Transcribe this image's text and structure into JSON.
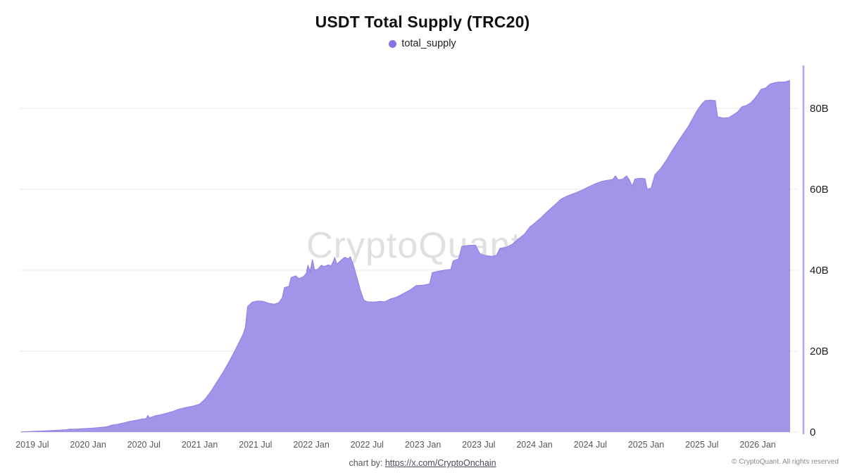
{
  "header": {
    "title": "USDT Total Supply (TRC20)",
    "legend_label": "total_supply"
  },
  "watermark": "CryptoQuant",
  "footer": {
    "credit_prefix": "chart by:",
    "credit_link": "https://x.com/CryptoOnchain",
    "copyright": "© CryptoQuant. All rights reserved"
  },
  "colors": {
    "area_fill": "#a494e9",
    "area_stroke": "#9183e6",
    "legend_dot": "#8374e4",
    "axis_line": "#b1a5f0",
    "gridline": "#e9e9ec"
  },
  "chart_data": {
    "type": "area",
    "title": "USDT Total Supply (TRC20)",
    "series_name": "total_supply",
    "unit": "billions of USDT",
    "grid": true,
    "legend_position": "top-center",
    "y_axis_side": "right",
    "xlim": [
      2019.4,
      2026.29
    ],
    "ylim": [
      0,
      90.6
    ],
    "y_ticks": [
      {
        "value": 0,
        "label": "0"
      },
      {
        "value": 20,
        "label": "20B"
      },
      {
        "value": 40,
        "label": "40B"
      },
      {
        "value": 60,
        "label": "60B"
      },
      {
        "value": 80,
        "label": "80B"
      }
    ],
    "x_ticks": [
      {
        "value": 2019.5,
        "label": "2019 Jul"
      },
      {
        "value": 2020.0,
        "label": "2020 Jan"
      },
      {
        "value": 2020.5,
        "label": "2020 Jul"
      },
      {
        "value": 2021.0,
        "label": "2021 Jan"
      },
      {
        "value": 2021.5,
        "label": "2021 Jul"
      },
      {
        "value": 2022.0,
        "label": "2022 Jan"
      },
      {
        "value": 2022.5,
        "label": "2022 Jul"
      },
      {
        "value": 2023.0,
        "label": "2023 Jan"
      },
      {
        "value": 2023.5,
        "label": "2023 Jul"
      },
      {
        "value": 2024.0,
        "label": "2024 Jan"
      },
      {
        "value": 2024.5,
        "label": "2024 Jul"
      },
      {
        "value": 2025.0,
        "label": "2025 Jan"
      },
      {
        "value": 2025.5,
        "label": "2025 Jul"
      },
      {
        "value": 2026.0,
        "label": "2026 Jan"
      }
    ],
    "points": [
      [
        2019.4,
        0.05
      ],
      [
        2019.47,
        0.1
      ],
      [
        2019.5,
        0.15
      ],
      [
        2019.58,
        0.25
      ],
      [
        2019.66,
        0.35
      ],
      [
        2019.74,
        0.45
      ],
      [
        2019.8,
        0.55
      ],
      [
        2019.84,
        0.75
      ],
      [
        2019.88,
        0.7
      ],
      [
        2019.94,
        0.8
      ],
      [
        2020.0,
        0.9
      ],
      [
        2020.06,
        1.0
      ],
      [
        2020.12,
        1.15
      ],
      [
        2020.17,
        1.3
      ],
      [
        2020.21,
        1.7
      ],
      [
        2020.26,
        1.9
      ],
      [
        2020.31,
        2.2
      ],
      [
        2020.37,
        2.6
      ],
      [
        2020.43,
        2.9
      ],
      [
        2020.48,
        3.2
      ],
      [
        2020.52,
        3.3
      ],
      [
        2020.535,
        4.1
      ],
      [
        2020.55,
        3.5
      ],
      [
        2020.6,
        4.0
      ],
      [
        2020.65,
        4.3
      ],
      [
        2020.7,
        4.6
      ],
      [
        2020.76,
        5.1
      ],
      [
        2020.82,
        5.7
      ],
      [
        2020.88,
        6.1
      ],
      [
        2020.94,
        6.4
      ],
      [
        2021.0,
        6.9
      ],
      [
        2021.05,
        8.2
      ],
      [
        2021.1,
        10.0
      ],
      [
        2021.15,
        12.2
      ],
      [
        2021.21,
        14.8
      ],
      [
        2021.26,
        17.2
      ],
      [
        2021.31,
        19.8
      ],
      [
        2021.35,
        22.0
      ],
      [
        2021.39,
        24.2
      ],
      [
        2021.41,
        26.0
      ],
      [
        2021.43,
        31.0
      ],
      [
        2021.47,
        32.1
      ],
      [
        2021.52,
        32.4
      ],
      [
        2021.57,
        32.3
      ],
      [
        2021.62,
        31.8
      ],
      [
        2021.67,
        31.6
      ],
      [
        2021.71,
        32.0
      ],
      [
        2021.74,
        33.2
      ],
      [
        2021.76,
        35.7
      ],
      [
        2021.8,
        36.0
      ],
      [
        2021.82,
        38.2
      ],
      [
        2021.86,
        38.6
      ],
      [
        2021.89,
        37.9
      ],
      [
        2021.93,
        38.4
      ],
      [
        2021.955,
        39.2
      ],
      [
        2021.97,
        41.2
      ],
      [
        2021.99,
        39.7
      ],
      [
        2022.01,
        42.6
      ],
      [
        2022.03,
        40.0
      ],
      [
        2022.06,
        40.3
      ],
      [
        2022.09,
        41.2
      ],
      [
        2022.12,
        40.9
      ],
      [
        2022.15,
        41.3
      ],
      [
        2022.18,
        41.1
      ],
      [
        2022.21,
        43.1
      ],
      [
        2022.23,
        41.5
      ],
      [
        2022.26,
        42.3
      ],
      [
        2022.3,
        43.2
      ],
      [
        2022.33,
        42.8
      ],
      [
        2022.35,
        43.3
      ],
      [
        2022.38,
        41.0
      ],
      [
        2022.41,
        38.0
      ],
      [
        2022.44,
        35.0
      ],
      [
        2022.47,
        32.6
      ],
      [
        2022.5,
        32.2
      ],
      [
        2022.56,
        32.1
      ],
      [
        2022.61,
        32.3
      ],
      [
        2022.66,
        32.2
      ],
      [
        2022.71,
        32.9
      ],
      [
        2022.77,
        33.4
      ],
      [
        2022.83,
        34.3
      ],
      [
        2022.89,
        35.2
      ],
      [
        2022.94,
        36.2
      ],
      [
        2023.0,
        36.3
      ],
      [
        2023.06,
        36.6
      ],
      [
        2023.085,
        39.4
      ],
      [
        2023.13,
        39.7
      ],
      [
        2023.19,
        40.0
      ],
      [
        2023.25,
        40.2
      ],
      [
        2023.27,
        42.3
      ],
      [
        2023.32,
        42.8
      ],
      [
        2023.35,
        45.9
      ],
      [
        2023.41,
        46.1
      ],
      [
        2023.47,
        46.2
      ],
      [
        2023.51,
        44.1
      ],
      [
        2023.56,
        43.6
      ],
      [
        2023.62,
        43.4
      ],
      [
        2023.66,
        43.7
      ],
      [
        2023.69,
        45.4
      ],
      [
        2023.75,
        45.7
      ],
      [
        2023.8,
        46.4
      ],
      [
        2023.85,
        47.6
      ],
      [
        2023.91,
        48.9
      ],
      [
        2023.96,
        50.7
      ],
      [
        2024.0,
        51.6
      ],
      [
        2024.06,
        53.0
      ],
      [
        2024.12,
        54.6
      ],
      [
        2024.18,
        56.1
      ],
      [
        2024.24,
        57.6
      ],
      [
        2024.3,
        58.4
      ],
      [
        2024.36,
        59.0
      ],
      [
        2024.42,
        59.7
      ],
      [
        2024.48,
        60.5
      ],
      [
        2024.54,
        61.3
      ],
      [
        2024.6,
        61.9
      ],
      [
        2024.65,
        62.2
      ],
      [
        2024.7,
        62.4
      ],
      [
        2024.725,
        63.3
      ],
      [
        2024.75,
        62.3
      ],
      [
        2024.79,
        62.5
      ],
      [
        2024.825,
        63.3
      ],
      [
        2024.85,
        62.3
      ],
      [
        2024.875,
        60.7
      ],
      [
        2024.9,
        62.5
      ],
      [
        2024.95,
        62.7
      ],
      [
        2024.99,
        62.6
      ],
      [
        2025.01,
        60.0
      ],
      [
        2025.045,
        60.3
      ],
      [
        2025.08,
        63.6
      ],
      [
        2025.13,
        65.1
      ],
      [
        2025.18,
        67.1
      ],
      [
        2025.23,
        69.4
      ],
      [
        2025.28,
        71.5
      ],
      [
        2025.33,
        73.6
      ],
      [
        2025.38,
        75.6
      ],
      [
        2025.42,
        77.6
      ],
      [
        2025.46,
        79.6
      ],
      [
        2025.5,
        81.1
      ],
      [
        2025.53,
        81.9
      ],
      [
        2025.58,
        82.0
      ],
      [
        2025.62,
        81.9
      ],
      [
        2025.64,
        77.9
      ],
      [
        2025.69,
        77.6
      ],
      [
        2025.74,
        77.7
      ],
      [
        2025.78,
        78.4
      ],
      [
        2025.82,
        79.1
      ],
      [
        2025.86,
        80.4
      ],
      [
        2025.9,
        80.7
      ],
      [
        2025.94,
        81.4
      ],
      [
        2025.97,
        82.3
      ],
      [
        2026.0,
        83.4
      ],
      [
        2026.03,
        84.7
      ],
      [
        2026.07,
        85.0
      ],
      [
        2026.11,
        86.0
      ],
      [
        2026.15,
        86.3
      ],
      [
        2026.19,
        86.5
      ],
      [
        2026.24,
        86.5
      ],
      [
        2026.29,
        86.9
      ]
    ]
  }
}
